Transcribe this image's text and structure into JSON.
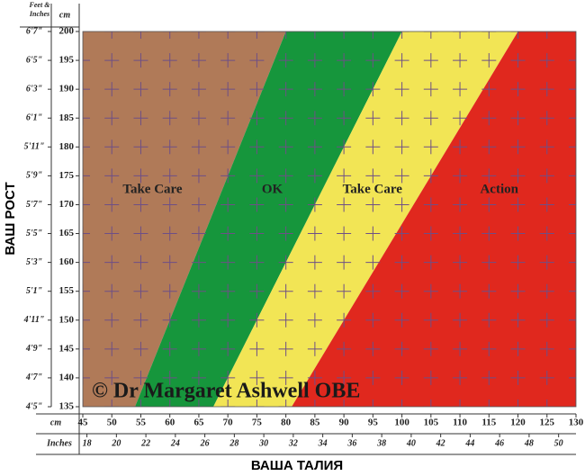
{
  "chart_data": {
    "type": "zone",
    "y_label": "ВАШ РОСТ",
    "x_label": "ВАША ТАЛИЯ",
    "y_unit_label": "cm",
    "y2_unit_label": "Feet & Inches",
    "x_unit_label": "cm",
    "x2_unit_label": "Inches",
    "annotation": "© Dr Margaret Ashwell OBE",
    "zones": [
      {
        "name": "Take Care",
        "color": "#b07a58"
      },
      {
        "name": "OK",
        "color": "#16963c"
      },
      {
        "name": "Take Care",
        "color": "#f2e555"
      },
      {
        "name": "Action",
        "color": "#e0281e"
      }
    ],
    "boundaries": [
      {
        "x": [
          54,
          80
        ],
        "y": [
          135,
          200
        ]
      },
      {
        "x": [
          67.5,
          100
        ],
        "y": [
          135,
          200
        ]
      },
      {
        "x": [
          81,
          120
        ],
        "y": [
          135,
          200
        ]
      }
    ],
    "xlim": [
      45,
      130
    ],
    "xticks": [
      45,
      50,
      55,
      60,
      65,
      70,
      75,
      80,
      85,
      90,
      95,
      100,
      105,
      110,
      115,
      120,
      125,
      130
    ],
    "x2lim": [
      17.72,
      51.18
    ],
    "x2ticks": [
      18,
      20,
      22,
      24,
      26,
      28,
      30,
      32,
      34,
      36,
      38,
      40,
      42,
      44,
      46,
      48,
      50
    ],
    "ylim": [
      135,
      200
    ],
    "yticks": [
      135,
      140,
      145,
      150,
      155,
      160,
      165,
      170,
      175,
      180,
      185,
      190,
      195,
      200
    ],
    "y2lim": [
      53,
      79
    ],
    "y2ticks": [
      {
        "value": 53,
        "label": "4'5\""
      },
      {
        "value": 55,
        "label": "4'7\""
      },
      {
        "value": 57,
        "label": "4'9\""
      },
      {
        "value": 59,
        "label": "4'11\""
      },
      {
        "value": 61,
        "label": "5'1\""
      },
      {
        "value": 63,
        "label": "5'3\""
      },
      {
        "value": 65,
        "label": "5'5\""
      },
      {
        "value": 67,
        "label": "5'7\""
      },
      {
        "value": 69,
        "label": "5'9\""
      },
      {
        "value": 71,
        "label": "5'11\""
      },
      {
        "value": 73,
        "label": "6'1\""
      },
      {
        "value": 75,
        "label": "6'3\""
      },
      {
        "value": 77,
        "label": "6'5\""
      },
      {
        "value": 79,
        "label": "6'7\""
      }
    ],
    "grid": true
  }
}
